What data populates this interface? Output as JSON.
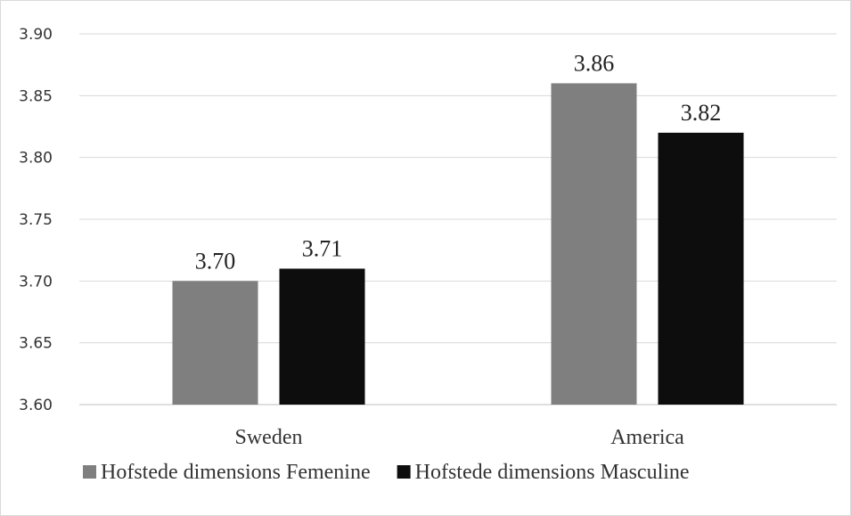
{
  "chart_data": {
    "type": "bar",
    "categories": [
      "Sweden",
      "America"
    ],
    "series": [
      {
        "name": "Hofstede dimensions Femenine",
        "values": [
          3.7,
          3.86
        ],
        "color": "#7f7f7f"
      },
      {
        "name": "Hofstede dimensions Masculine",
        "values": [
          3.71,
          3.82
        ],
        "color": "#0d0d0d"
      }
    ],
    "data_labels": [
      [
        "3.70",
        "3.86"
      ],
      [
        "3.71",
        "3.82"
      ]
    ],
    "yticks": [
      "3.60",
      "3.65",
      "3.70",
      "3.75",
      "3.80",
      "3.85",
      "3.90"
    ],
    "ylim": [
      3.6,
      3.9
    ],
    "grid": true,
    "legend_position": "bottom"
  }
}
